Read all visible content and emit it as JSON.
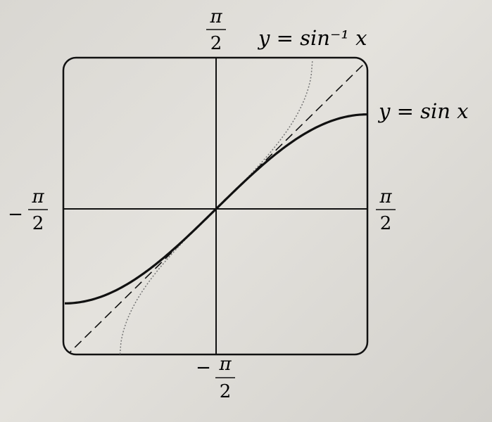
{
  "chart_data": {
    "type": "line",
    "title": "",
    "x_range": [
      "-π/2",
      "π/2"
    ],
    "y_range": [
      "-π/2",
      "π/2"
    ],
    "grid": false,
    "legend": "none",
    "tick_labels": {
      "x_min": {
        "sign": "−",
        "num": "π",
        "den": "2"
      },
      "x_max": {
        "sign": "",
        "num": "π",
        "den": "2"
      },
      "y_min": {
        "sign": "−",
        "num": "π",
        "den": "2"
      },
      "y_max": {
        "sign": "",
        "num": "π",
        "den": "2"
      }
    },
    "annotations": {
      "sin": "y = sin x",
      "arcsin": "y = sin⁻¹ x"
    },
    "series": [
      {
        "function": "sin x",
        "domain": [
          -1.5708,
          1.5708
        ],
        "style": "solid",
        "color": "#111111",
        "x": [
          -1.5708,
          -1.2,
          -0.8,
          -0.4,
          0,
          0.4,
          0.8,
          1.2,
          1.5708
        ],
        "y": [
          -1.0,
          -0.932,
          -0.717,
          -0.389,
          0,
          0.389,
          0.717,
          0.932,
          1.0
        ]
      },
      {
        "function": "sin⁻¹ x",
        "domain": [
          -1,
          1
        ],
        "style": "dotted",
        "color": "#777777",
        "x": [
          -1.0,
          -0.9,
          -0.6,
          -0.3,
          0,
          0.3,
          0.6,
          0.9,
          1.0
        ],
        "y": [
          -1.5708,
          -1.1198,
          -0.6435,
          -0.3047,
          0,
          0.3047,
          0.6435,
          1.1198,
          1.5708
        ]
      },
      {
        "function": "x",
        "domain": [
          -1.5708,
          1.5708
        ],
        "style": "dashed",
        "color": "#111111",
        "x": [
          -1.5708,
          1.5708
        ],
        "y": [
          -1.5708,
          1.5708
        ]
      }
    ]
  }
}
